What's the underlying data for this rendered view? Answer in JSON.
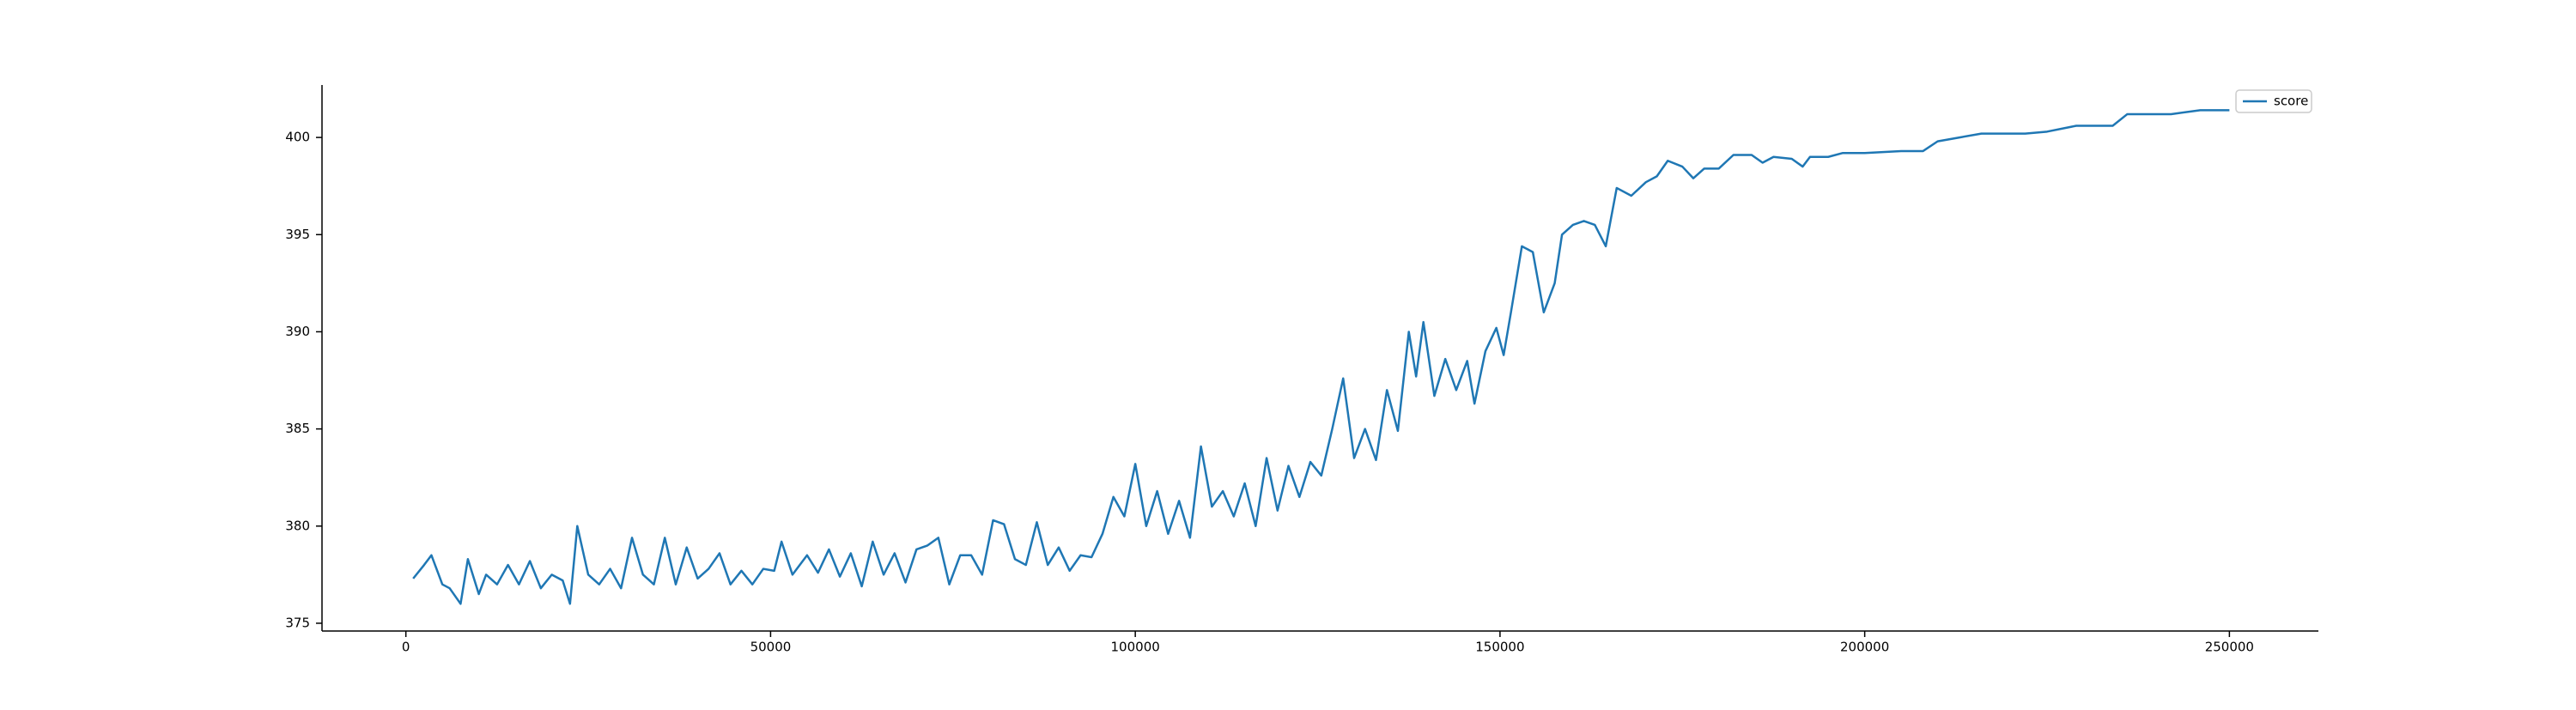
{
  "chart_data": {
    "type": "line",
    "x": [
      1000,
      2500,
      3500,
      5000,
      6000,
      7500,
      8500,
      10000,
      11000,
      12500,
      14000,
      15500,
      17000,
      18500,
      20000,
      21500,
      22500,
      23500,
      25000,
      26500,
      28000,
      29500,
      31000,
      32500,
      34000,
      35500,
      37000,
      38500,
      40000,
      41500,
      43000,
      44500,
      46000,
      47500,
      49000,
      50500,
      51500,
      53000,
      55000,
      56500,
      58000,
      59500,
      61000,
      62500,
      64000,
      65500,
      67000,
      68500,
      70000,
      71500,
      73000,
      74500,
      76000,
      77500,
      79000,
      80500,
      82000,
      83500,
      85000,
      86500,
      88000,
      89500,
      91000,
      92500,
      94000,
      95500,
      97000,
      98500,
      100000,
      101500,
      103000,
      104500,
      106000,
      107500,
      109000,
      110500,
      112000,
      113500,
      115000,
      116500,
      118000,
      119500,
      121000,
      122500,
      124000,
      125500,
      127000,
      128500,
      130000,
      131500,
      133000,
      134500,
      136000,
      137500,
      138500,
      139500,
      141000,
      142500,
      144000,
      145500,
      146500,
      148000,
      149500,
      150500,
      151500,
      153000,
      154500,
      156000,
      157500,
      158500,
      160000,
      161500,
      163000,
      164500,
      166000,
      168000,
      170000,
      171500,
      173000,
      175000,
      176500,
      178000,
      180000,
      182000,
      184500,
      186000,
      187500,
      190000,
      191500,
      192500,
      195000,
      197000,
      200000,
      205000,
      208000,
      210000,
      213000,
      216000,
      222000,
      225000,
      229000,
      234000,
      236000,
      242000,
      246000,
      250000
    ],
    "series": [
      {
        "name": "score",
        "color": "#1f77b4",
        "values": [
          377.3,
          378,
          378.5,
          377,
          376.8,
          376,
          378.3,
          376.5,
          377.5,
          377,
          378,
          377,
          378.2,
          376.8,
          377.5,
          377.2,
          376,
          380,
          377.5,
          377,
          377.8,
          376.8,
          379.4,
          377.5,
          377,
          379.4,
          377,
          378.9,
          377.3,
          377.8,
          378.6,
          377,
          377.7,
          377,
          377.8,
          377.7,
          379.2,
          377.5,
          378.5,
          377.6,
          378.8,
          377.4,
          378.6,
          376.9,
          379.2,
          377.5,
          378.6,
          377.1,
          378.8,
          379,
          379.4,
          377,
          378.5,
          378.5,
          377.5,
          380.3,
          380.1,
          378.3,
          378,
          380.2,
          378,
          378.9,
          377.7,
          378.5,
          378.4,
          379.6,
          381.5,
          380.5,
          383.2,
          380,
          381.8,
          379.6,
          381.3,
          379.4,
          384.1,
          381,
          381.8,
          380.5,
          382.2,
          380,
          383.5,
          380.8,
          383.1,
          381.5,
          383.3,
          382.6,
          385,
          387.6,
          383.5,
          385,
          383.4,
          387,
          384.9,
          390,
          387.7,
          390.5,
          386.7,
          388.6,
          387,
          388.5,
          386.3,
          389,
          390.2,
          388.8,
          391,
          394.4,
          394.1,
          391,
          392.5,
          395,
          395.5,
          395.7,
          395.5,
          394.4,
          397.4,
          397,
          397.7,
          398,
          398.8,
          398.5,
          397.9,
          398.4,
          398.4,
          399.1,
          399.1,
          398.7,
          399,
          398.9,
          398.5,
          399,
          399,
          399.2,
          399.2,
          399.3,
          399.3,
          399.8,
          400,
          400.2,
          400.2,
          400.3,
          400.6,
          400.6,
          401.2,
          401.2,
          401.4,
          401.4
        ]
      }
    ],
    "xlim": [
      -11500,
      262200
    ],
    "xticks": [
      0,
      50000,
      100000,
      150000,
      200000,
      250000
    ],
    "ylim": [
      374.6,
      402.7
    ],
    "yticks": [
      375,
      380,
      385,
      390,
      395,
      400
    ],
    "legend": "upper right"
  }
}
